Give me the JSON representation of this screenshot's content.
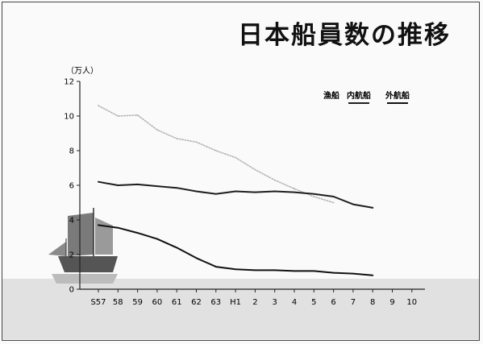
{
  "chart_data": {
    "type": "line",
    "title": "日本船員数の推移",
    "ylabel": "",
    "xlabel": "",
    "y_unit": "（万人）",
    "ylim": [
      0,
      12
    ],
    "y_ticks": [
      "0",
      "2",
      "4",
      "6",
      "8",
      "10",
      "12"
    ],
    "categories": [
      "S57",
      "58",
      "59",
      "60",
      "61",
      "62",
      "63",
      "H1",
      "2",
      "3",
      "4",
      "5",
      "6",
      "7",
      "8",
      "9",
      "10"
    ],
    "grid": false,
    "legend_position": "top-right",
    "series": [
      {
        "name": "漁船",
        "color": "#b4b4b4",
        "style": "dotted",
        "values": [
          10.6,
          10.0,
          10.05,
          9.2,
          8.7,
          8.5,
          8.0,
          7.6,
          6.9,
          6.3,
          5.8,
          5.35,
          5.0,
          null,
          null,
          null,
          null
        ]
      },
      {
        "name": "内航船",
        "color": "#1e1e1e",
        "style": "solid",
        "values": [
          6.2,
          6.0,
          6.05,
          5.95,
          5.85,
          5.65,
          5.5,
          5.65,
          5.6,
          5.65,
          5.6,
          5.5,
          5.35,
          4.9,
          4.7,
          null,
          null
        ]
      },
      {
        "name": "外航船",
        "color": "#111111",
        "style": "solid",
        "values": [
          3.7,
          3.55,
          3.25,
          2.9,
          2.4,
          1.8,
          1.3,
          1.15,
          1.1,
          1.1,
          1.05,
          1.05,
          0.95,
          0.9,
          0.8,
          null,
          null
        ]
      }
    ]
  }
}
